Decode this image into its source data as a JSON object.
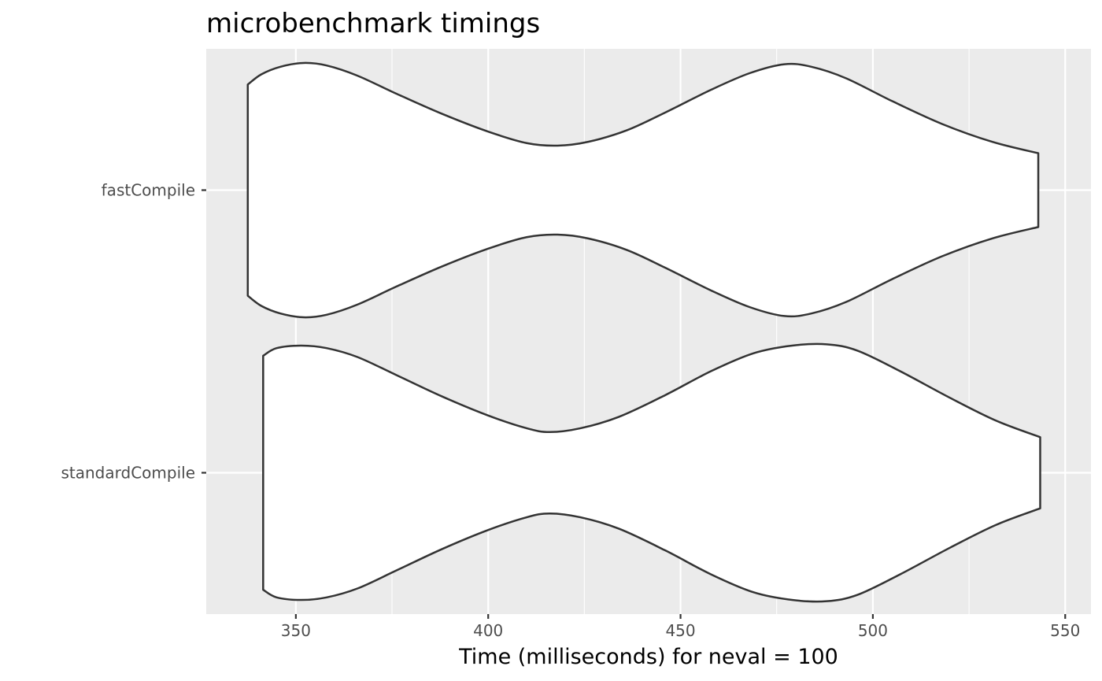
{
  "chart_data": {
    "type": "violin",
    "orientation": "horizontal",
    "title": "microbenchmark timings",
    "xlabel": "Time (milliseconds) for neval = 100",
    "ylabel": "",
    "xlim": [
      326.7,
      556.7
    ],
    "x_ticks": [
      350,
      400,
      450,
      500,
      550
    ],
    "x_minor_ticks": [
      375,
      425,
      475,
      525
    ],
    "categories": [
      "standardCompile",
      "fastCompile"
    ],
    "grid": true,
    "series": [
      {
        "name": "fastCompile",
        "range": [
          337.5,
          543.0
        ],
        "profile": [
          [
            337.5,
            0.83
          ],
          [
            341.0,
            0.91
          ],
          [
            346.0,
            0.97
          ],
          [
            352.0,
            1.0
          ],
          [
            358.0,
            0.98
          ],
          [
            366.0,
            0.9
          ],
          [
            376.0,
            0.76
          ],
          [
            388.0,
            0.6
          ],
          [
            400.0,
            0.46
          ],
          [
            410.0,
            0.37
          ],
          [
            418.0,
            0.35
          ],
          [
            426.0,
            0.38
          ],
          [
            436.0,
            0.47
          ],
          [
            446.0,
            0.61
          ],
          [
            458.0,
            0.79
          ],
          [
            468.0,
            0.92
          ],
          [
            477.0,
            0.99
          ],
          [
            484.0,
            0.97
          ],
          [
            493.0,
            0.88
          ],
          [
            505.0,
            0.7
          ],
          [
            518.0,
            0.52
          ],
          [
            531.0,
            0.38
          ],
          [
            543.0,
            0.29
          ]
        ]
      },
      {
        "name": "standardCompile",
        "range": [
          341.5,
          543.5
        ],
        "profile": [
          [
            341.5,
            0.92
          ],
          [
            345.0,
            0.98
          ],
          [
            351.5,
            1.0
          ],
          [
            358.0,
            0.98
          ],
          [
            366.0,
            0.91
          ],
          [
            376.0,
            0.77
          ],
          [
            388.0,
            0.6
          ],
          [
            400.0,
            0.45
          ],
          [
            410.0,
            0.35
          ],
          [
            416.0,
            0.32
          ],
          [
            424.0,
            0.35
          ],
          [
            434.0,
            0.44
          ],
          [
            446.0,
            0.61
          ],
          [
            458.0,
            0.8
          ],
          [
            469.0,
            0.94
          ],
          [
            479.0,
            1.0
          ],
          [
            488.0,
            1.01
          ],
          [
            496.0,
            0.96
          ],
          [
            507.0,
            0.8
          ],
          [
            520.0,
            0.59
          ],
          [
            532.0,
            0.41
          ],
          [
            543.5,
            0.28
          ]
        ]
      }
    ]
  }
}
